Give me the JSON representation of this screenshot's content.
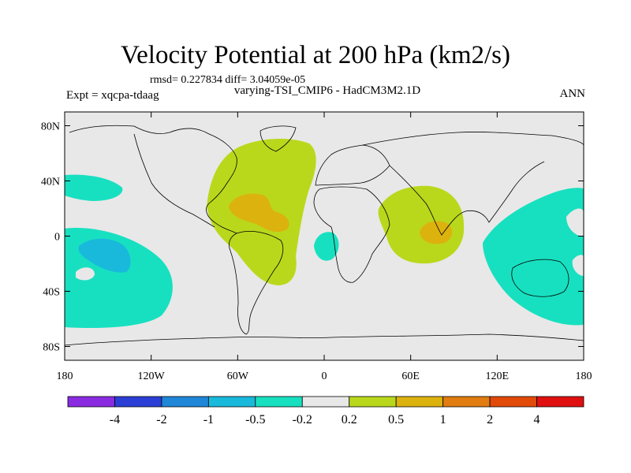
{
  "title": "Velocity Potential at 200 hPa (km2/s)",
  "stats": "rmsd= 0.227834 diff= 3.04059e-05",
  "experiment": "Expt = xqcpa-tdaag",
  "subtitle": "varying-TSI_CMIP6 - HadCM3M2.1D",
  "season": "ANN",
  "map": {
    "lon_range": [
      -180,
      180
    ],
    "lat_range": [
      -90,
      90
    ],
    "lat_ticks": [
      {
        "value": 80,
        "label": "80N"
      },
      {
        "value": 40,
        "label": "40N"
      },
      {
        "value": 0,
        "label": "0"
      },
      {
        "value": -40,
        "label": "40S"
      },
      {
        "value": -80,
        "label": "80S"
      }
    ],
    "lon_ticks": [
      {
        "value": -180,
        "label": "180"
      },
      {
        "value": -120,
        "label": "120W"
      },
      {
        "value": -60,
        "label": "60W"
      },
      {
        "value": 0,
        "label": "0"
      },
      {
        "value": 60,
        "label": "60E"
      },
      {
        "value": 120,
        "label": "120E"
      },
      {
        "value": 180,
        "label": "180"
      }
    ]
  },
  "colorbar": {
    "colors": [
      "#8a2be2",
      "#2b3fd6",
      "#1f86d8",
      "#19b9dc",
      "#17e0c0",
      "#e8e8e8",
      "#b9d81c",
      "#dcb20e",
      "#e07c10",
      "#e24a0a",
      "#e01010"
    ],
    "labels": [
      "-4",
      "-2",
      "-1",
      "-0.5",
      "-0.2",
      "0.2",
      "0.5",
      "1",
      "2",
      "4"
    ]
  },
  "colors": {
    "background": "#e8e8e8",
    "negative_weak": "#17e0c0",
    "negative_mid": "#19b9dc",
    "positive_weak": "#b9d81c",
    "positive_mid": "#dcb20e",
    "coast": "#000000"
  }
}
